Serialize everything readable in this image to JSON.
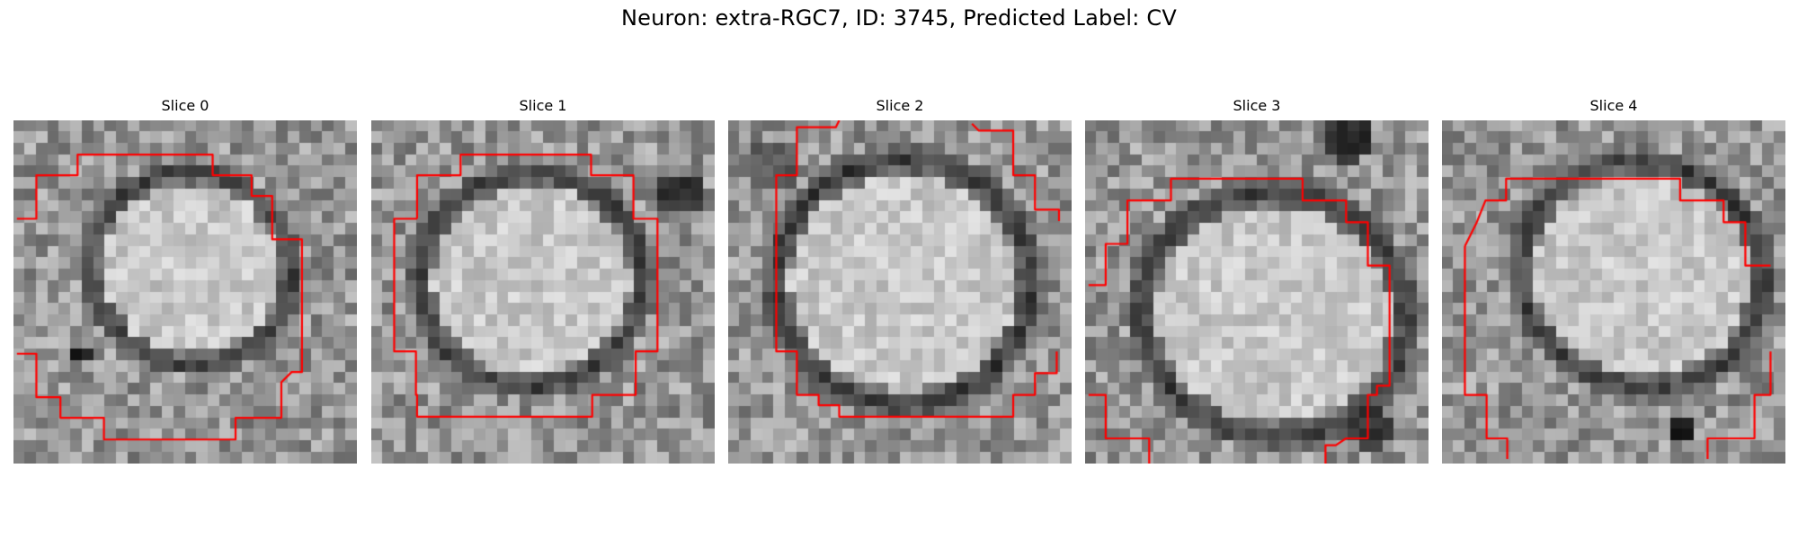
{
  "figure": {
    "title": "Neuron: extra-RGC7, ID: 3745, Predicted Label: CV",
    "contour_color": "#ff0000",
    "colormap": "gray"
  },
  "panels": [
    {
      "title": "Slice 0"
    },
    {
      "title": "Slice 1"
    },
    {
      "title": "Slice 2"
    },
    {
      "title": "Slice 3"
    },
    {
      "title": "Slice 4"
    }
  ]
}
